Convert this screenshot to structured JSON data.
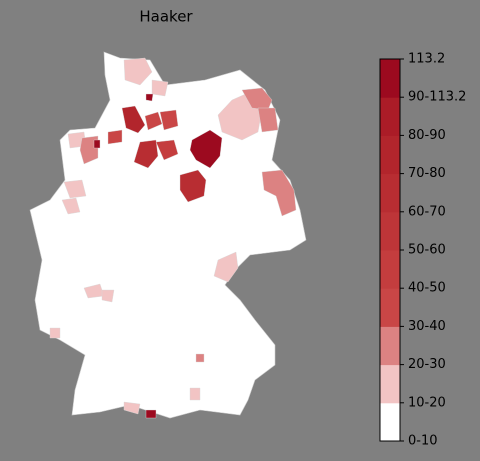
{
  "title": "Haaker",
  "colorbar": {
    "ticks": [
      "0-10",
      "10-20",
      "20-30",
      "30-40",
      "40-50",
      "50-60",
      "60-70",
      "70-80",
      "80-90",
      "90-113.2",
      "113.2"
    ],
    "colors": [
      "#ffffff",
      "#f2c4c4",
      "#dc8282",
      "#c94646",
      "#c43d3e",
      "#be3538",
      "#b82d32",
      "#b2252c",
      "#ab1c27",
      "#9c0a1f"
    ]
  }
}
